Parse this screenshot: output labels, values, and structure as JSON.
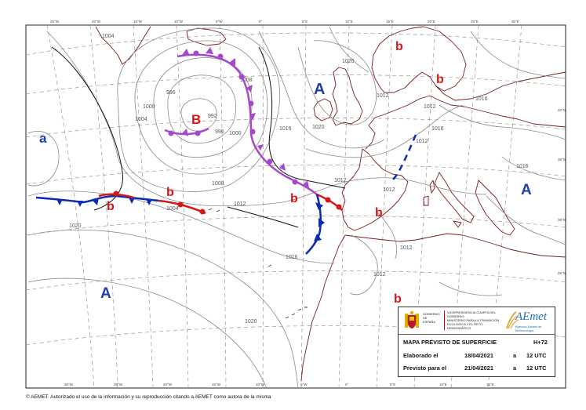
{
  "map": {
    "title": "MAPA PREVISTO DE SUPERFICIE",
    "lead_time": "H+72",
    "issued_label": "Elaborado el",
    "issued_date": "18/04/2021",
    "issued_at": "a",
    "issued_time": "12 UTC",
    "valid_label": "Previsto para el",
    "valid_date": "21/04/2021",
    "valid_at": "a",
    "valid_time": "12 UTC"
  },
  "pressure_systems": {
    "low_main": "B",
    "low_sub": "b",
    "high_main": "A",
    "high_sub": "a"
  },
  "isobar_labels": {
    "l992": "992",
    "l996": "996",
    "l1000": "1000",
    "l1004": "1004",
    "l1008": "1008",
    "l1012": "1012",
    "l1016": "1016",
    "l1020": "1020"
  },
  "graticule": {
    "top": [
      "25°W",
      "20°W",
      "15°W",
      "10°W",
      "5°W",
      "0°",
      "5°E",
      "10°E",
      "15°E",
      "20°E",
      "25°E",
      "30°E"
    ],
    "bottom": [
      "30°W",
      "25°W",
      "20°W",
      "15°W",
      "10°W",
      "5°W",
      "0°",
      "5°E",
      "10°E",
      "15°E"
    ],
    "right": [
      "40°N",
      "35°N",
      "30°N",
      "25°N"
    ]
  },
  "logos": {
    "government": "GOBIERNO DE ESPAÑA",
    "ministry_top": "VICEPRESIDENCIA CUARTA DEL GOBIERNO",
    "ministry_name": "MINISTERIO PARA LA TRANSICIÓN ECOLÓGICA Y EL RETO DEMOGRÁFICO",
    "agency": "AEmet",
    "agency_sub": "Agencia Estatal de Meteorología"
  },
  "colors": {
    "cold_front": "#0b2bb5",
    "warm_front": "#d81616",
    "occluded_front": "#a548c9",
    "low_label": "#d81616",
    "high_label": "#1f3fa8",
    "isobar": "#8a8a8a",
    "coast": "#7a1b1b"
  },
  "copyright": "© AEMET. Autorizado el uso de la información y su reproducción citando a AEMET como autora de la misma"
}
